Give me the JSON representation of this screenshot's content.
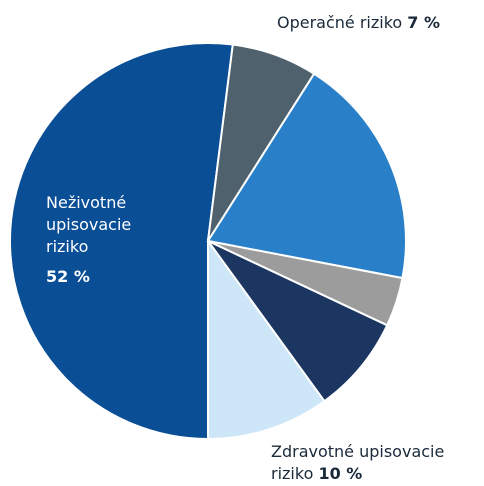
{
  "chart_data": {
    "type": "pie",
    "categories": [
      "Neživotné upisovacie riziko",
      "Operačné riziko",
      null,
      null,
      null,
      "Zdravotné upisovacie riziko"
    ],
    "values": [
      52,
      7,
      19,
      4,
      8,
      10
    ],
    "value_labels": [
      "52 %",
      "7 %",
      null,
      null,
      null,
      "10 %"
    ],
    "colors": [
      "#0a4e96",
      "#4e616d",
      "#2a80c8",
      "#9c9c9c",
      "#1b3660",
      "#cde6f8"
    ]
  }
}
